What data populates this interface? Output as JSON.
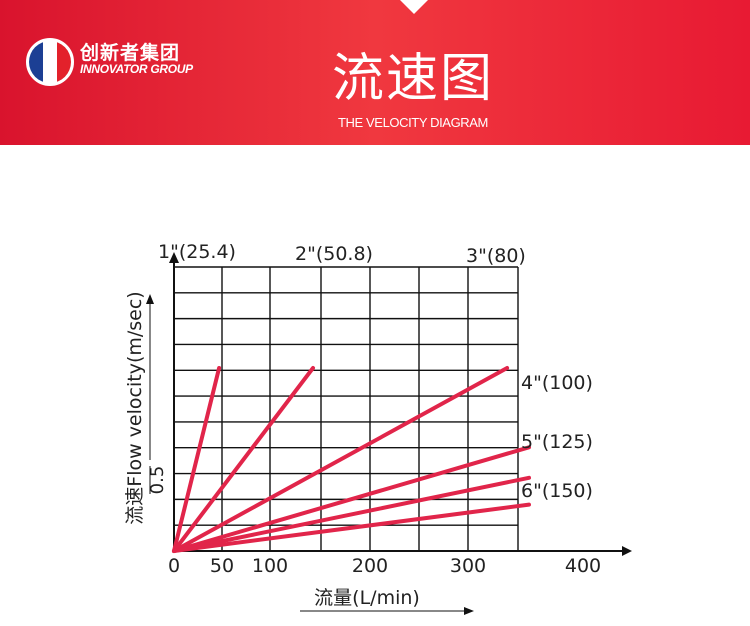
{
  "header": {
    "brand_cn": "创新者集团",
    "brand_en": "INNOVATOR GROUP",
    "title_cn": "流速图",
    "title_en": "THE VELOCITY DIAGRAM"
  },
  "colors": {
    "header_red": "#e8232f",
    "line": "#e1254a",
    "grid": "#111111"
  },
  "chart_data": {
    "type": "line",
    "title": "THE VELOCITY DIAGRAM",
    "xlabel": "流量(L/min)",
    "ylabel": "流速Flow velocity(m/sec)",
    "x_ticks": [
      "0",
      "50",
      "100",
      "200",
      "300",
      "400"
    ],
    "y_ticks": [
      "0.5"
    ],
    "grid": true,
    "series": [
      {
        "name": "1\"(25.4)",
        "x": [
          0,
          47
        ],
        "y": [
          0,
          1.5
        ]
      },
      {
        "name": "2\"(50.8)",
        "x": [
          0,
          143
        ],
        "y": [
          0,
          1.5
        ]
      },
      {
        "name": "3\"(80)",
        "x": [
          0,
          334
        ],
        "y": [
          0,
          1.5
        ]
      },
      {
        "name": "4\"(100)",
        "x": [
          0,
          353
        ],
        "y": [
          0,
          0.85
        ]
      },
      {
        "name": "5\"(125)",
        "x": [
          0,
          353
        ],
        "y": [
          0,
          0.6
        ]
      },
      {
        "name": "6\"(150)",
        "x": [
          0,
          353
        ],
        "y": [
          0,
          0.38
        ]
      }
    ]
  }
}
